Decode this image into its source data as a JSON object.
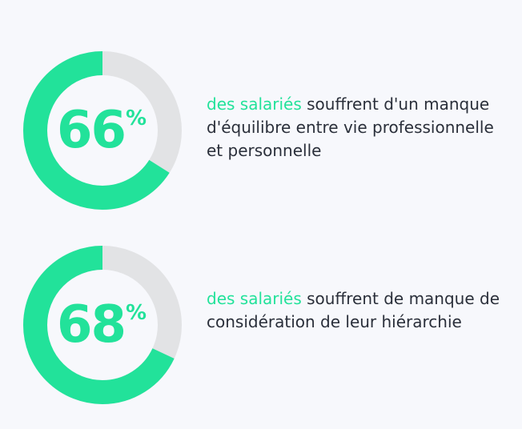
{
  "colors": {
    "accent": "#22e29a",
    "track": "#e2e3e5",
    "background": "#f7f8fc",
    "text": "#2a2f3a"
  },
  "chart_data": [
    {
      "type": "pie",
      "values": [
        66,
        34
      ],
      "value_label": "66",
      "unit": "%",
      "caption": {
        "highlight": "des salariés",
        "rest": " souffrent d'un manque d'équilibre entre vie professionnelle et personnelle"
      }
    },
    {
      "type": "pie",
      "values": [
        68,
        32
      ],
      "value_label": "68",
      "unit": "%",
      "caption": {
        "highlight": "des salariés",
        "rest": " souffrent de manque de considération de leur hiérarchie"
      }
    }
  ]
}
